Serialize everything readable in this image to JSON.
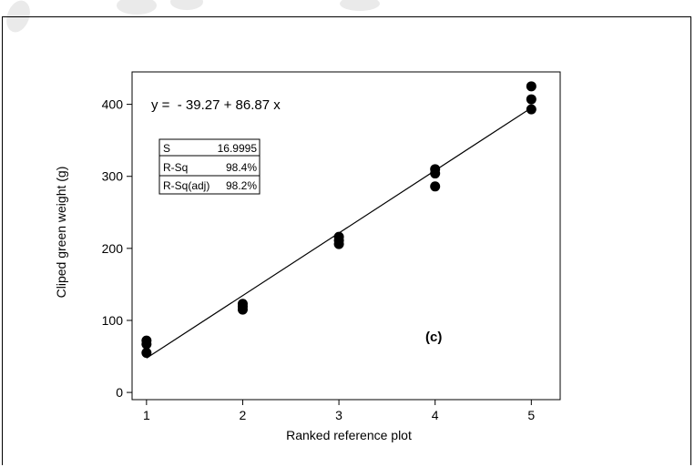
{
  "chart_data": {
    "type": "scatter",
    "xlabel": "Ranked reference plot",
    "ylabel": "Cliped  green weight (g)",
    "xlim": [
      0.85,
      5.3
    ],
    "ylim": [
      -10,
      445
    ],
    "x_ticks": [
      "1",
      "2",
      "3",
      "4",
      "5"
    ],
    "y_ticks": [
      "0",
      "100",
      "200",
      "300",
      "400"
    ],
    "grid": false,
    "series": [
      {
        "points": [
          {
            "x": 1,
            "y": 55
          },
          {
            "x": 1,
            "y": 67
          },
          {
            "x": 1,
            "y": 72
          },
          {
            "x": 2,
            "y": 115
          },
          {
            "x": 2,
            "y": 119
          },
          {
            "x": 2,
            "y": 123
          },
          {
            "x": 3,
            "y": 206
          },
          {
            "x": 3,
            "y": 211
          },
          {
            "x": 3,
            "y": 216
          },
          {
            "x": 4,
            "y": 286
          },
          {
            "x": 4,
            "y": 304
          },
          {
            "x": 4,
            "y": 310
          },
          {
            "x": 5,
            "y": 393
          },
          {
            "x": 5,
            "y": 407
          },
          {
            "x": 5,
            "y": 425
          }
        ]
      }
    ],
    "fit_line": {
      "intercept": -39.27,
      "slope": 86.87,
      "x_range": [
        1,
        5
      ]
    },
    "equation": "y =  - 39.27 + 86.87 x",
    "stats": [
      {
        "label": "S",
        "value": "16.9995"
      },
      {
        "label": "R-Sq",
        "value": "98.4%"
      },
      {
        "label": "R-Sq(adj)",
        "value": "98.2%"
      }
    ],
    "panel_label": "(c)"
  }
}
